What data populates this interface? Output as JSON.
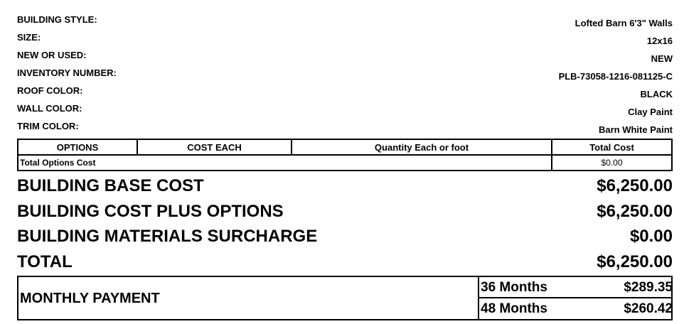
{
  "details": [
    {
      "label": "BUILDING STYLE:",
      "value": "Lofted Barn 6'3\" Walls"
    },
    {
      "label": "SIZE:",
      "value": "12x16"
    },
    {
      "label": "NEW OR USED:",
      "value": "NEW"
    },
    {
      "label": "INVENTORY NUMBER:",
      "value": "PLB-73058-1216-081125-C"
    },
    {
      "label": "ROOF COLOR:",
      "value": "BLACK"
    },
    {
      "label": "WALL COLOR:",
      "value": "Clay Paint"
    },
    {
      "label": "TRIM COLOR:",
      "value": "Barn White Paint"
    }
  ],
  "options_table": {
    "headers": [
      "OPTIONS",
      "COST EACH",
      "Quantity Each or foot",
      "Total Cost"
    ],
    "total_label": "Total Options Cost",
    "total_value": "$0.00"
  },
  "summary": [
    {
      "label": "BUILDING BASE COST",
      "value": "$6,250.00"
    },
    {
      "label": "BUILDING COST PLUS OPTIONS",
      "value": "$6,250.00"
    },
    {
      "label": "BUILDING MATERIALS SURCHARGE",
      "value": "$0.00"
    },
    {
      "label": "TOTAL",
      "value": "$6,250.00"
    }
  ],
  "monthly": {
    "label": "MONTHLY PAYMENT",
    "plans": [
      {
        "term": "36 Months",
        "amount": "$289.35"
      },
      {
        "term": "48 Months",
        "amount": "$260.42"
      }
    ]
  }
}
